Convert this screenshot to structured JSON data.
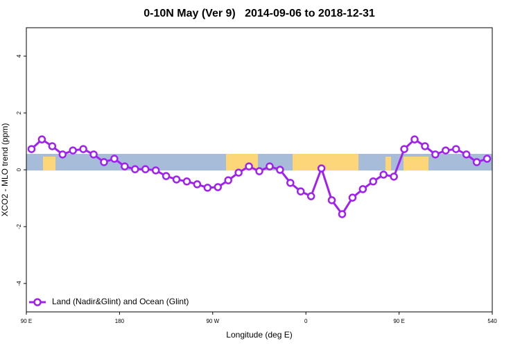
{
  "chart_data": {
    "type": "line",
    "title": "0-10N May (Ver 9)   2014-09-06 to 2018-12-31",
    "x_label": "Longitude (deg E)",
    "y_label": "XCO2 - MLO trend (ppm)",
    "x": [
      95,
      105,
      115,
      125,
      135,
      145,
      155,
      165,
      175,
      185,
      195,
      205,
      215,
      225,
      235,
      245,
      255,
      265,
      275,
      285,
      295,
      305,
      315,
      325,
      335,
      345,
      355,
      365,
      375,
      385,
      395,
      405,
      415,
      425,
      435,
      445,
      455,
      465,
      475,
      485,
      495,
      505,
      515,
      525,
      535
    ],
    "series": [
      {
        "name": "Land (Nadir&Glint) and Ocean (Glint)",
        "color": "#a020f0",
        "values": [
          0.73,
          1.07,
          0.83,
          0.54,
          0.68,
          0.73,
          0.54,
          0.27,
          0.39,
          0.12,
          0.02,
          0.02,
          -0.02,
          -0.22,
          -0.34,
          -0.41,
          -0.51,
          -0.63,
          -0.61,
          -0.37,
          -0.1,
          0.12,
          -0.05,
          0.12,
          0.0,
          -0.46,
          -0.76,
          -0.93,
          0.05,
          -1.07,
          -1.56,
          -0.98,
          -0.68,
          -0.41,
          -0.17,
          -0.24,
          0.73,
          1.07,
          0.83,
          0.54,
          0.68,
          0.73,
          0.54,
          0.27,
          0.39
        ]
      }
    ],
    "xlim": [
      90,
      540
    ],
    "xticks": [
      {
        "value": 90,
        "label": "90 E"
      },
      180,
      {
        "value": 270,
        "label": "90 W"
      },
      {
        "value": 360,
        "label": "0"
      },
      {
        "value": 450,
        "label": "90 E"
      },
      540
    ],
    "ylim": [
      -5,
      5
    ],
    "yticks": [
      -4,
      -2,
      0,
      2,
      4
    ],
    "legend": "bottom-left"
  }
}
